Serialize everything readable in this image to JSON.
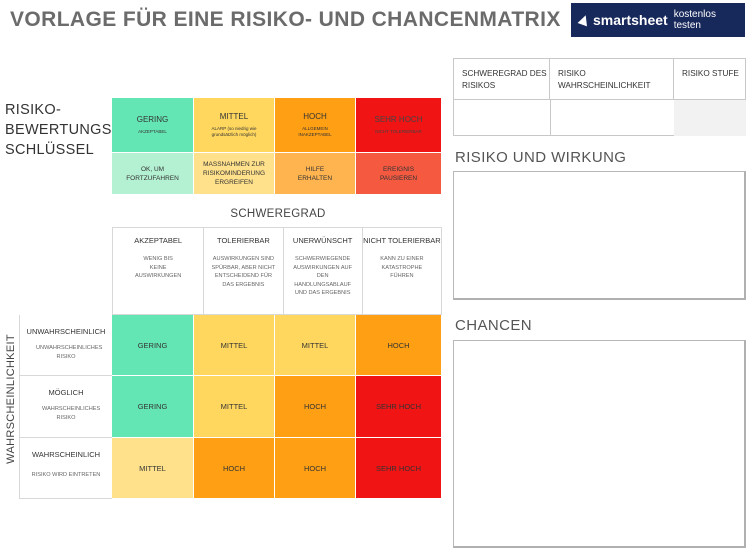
{
  "header": {
    "title": "VORLAGE FÜR EINE RISIKO- UND CHANCENMATRIX",
    "logo_brand": "smartsheet",
    "logo_tag": "kostenlos testen"
  },
  "key": {
    "label_lines": [
      "RISIKO-",
      "BEWERTUNGS-",
      "SCHLÜSSEL"
    ],
    "levels": [
      {
        "title": "GERING",
        "subtitle": "AKZEPTABEL",
        "action": "OK, UM FORTZUFAHREN"
      },
      {
        "title": "MITTEL",
        "subtitle": "ALARP (so niedrig wie grundsätzlich möglich)",
        "action": "MASSNAHMEN ZUR RISIKOMINDERUNG ERGREIFEN"
      },
      {
        "title": "HOCH",
        "subtitle": "ALLGEMEIN INAKZEPTABEL",
        "action": "HILFE ERHALTEN"
      },
      {
        "title": "SEHR HOCH",
        "subtitle": "NICHT TOLERIERBAR",
        "action": "EREIGNIS PAUSIEREN"
      }
    ]
  },
  "severity": {
    "title": "SCHWEREGRAD",
    "columns": [
      {
        "head": "AKZEPTABEL",
        "desc": "WENIG BIS KEINE AUSWIRKUNGEN"
      },
      {
        "head": "TOLERIERBAR",
        "desc": "AUSWIRKUNGEN SIND SPÜRBAR, ABER NICHT ENTSCHEIDEND FÜR DAS ERGEBNIS"
      },
      {
        "head": "UNERWÜNSCHT",
        "desc": "SCHWERWIEGENDE AUSWIRKUNGEN AUF DEN HANDLUNGSABLAUF UND DAS ERGEBNIS"
      },
      {
        "head": "NICHT TOLERIERBAR",
        "desc": "KANN ZU EINER KATASTROPHE FÜHREN"
      }
    ]
  },
  "likelihood": {
    "title": "WAHRSCHEINLICHKEIT",
    "rows": [
      {
        "head": "UNWAHRSCHEINLICH",
        "desc": "UNWAHRSCHEINLICHES RISIKO",
        "cells": [
          "GERING",
          "MITTEL",
          "MITTEL",
          "HOCH"
        ]
      },
      {
        "head": "MÖGLICH",
        "desc": "WAHRSCHEINLICHES RISIKO",
        "cells": [
          "GERING",
          "MITTEL",
          "HOCH",
          "SEHR HOCH"
        ]
      },
      {
        "head": "WAHRSCHEINLICH",
        "desc": "RISIKO WIRD EINTRETEN",
        "cells": [
          "MITTEL",
          "HOCH",
          "HOCH",
          "SEHR HOCH"
        ]
      }
    ]
  },
  "summary": {
    "headers": [
      "SCHWEREGRAD DES RISIKOS",
      "RISIKO WAHRSCHEINLICHKEIT",
      "RISIKO STUFE"
    ]
  },
  "sections": {
    "impact_title": "RISIKO UND WIRKUNG",
    "opportunities_title": "CHANCEN"
  },
  "colors": {
    "gering": "#64e6b4",
    "mittel": "#ffd75f",
    "hoch": "#ff9f14",
    "sehr_hoch": "#f01414",
    "logo_bg": "#17285a"
  }
}
